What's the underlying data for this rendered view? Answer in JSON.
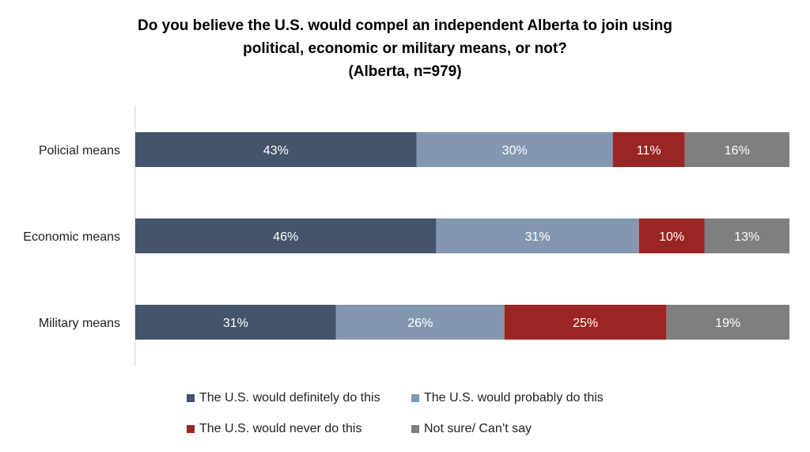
{
  "chart_data": {
    "type": "bar",
    "orientation": "horizontal",
    "stacked": true,
    "title_lines": [
      "Do you believe the U.S. would compel an independent Alberta to join using",
      "political, economic or military means, or not?",
      "(Alberta, n=979)"
    ],
    "categories": [
      "Policial means",
      "Economic means",
      "Military means"
    ],
    "series": [
      {
        "name": "The U.S. would definitely do this",
        "color": "#44546a",
        "values": [
          43,
          46,
          31
        ],
        "labels": [
          "43%",
          "46%",
          "31%"
        ]
      },
      {
        "name": "The U.S. would probably do this",
        "color": "#8497b0",
        "values": [
          30,
          31,
          26
        ],
        "labels": [
          "30%",
          "31%",
          "26%"
        ]
      },
      {
        "name": "The U.S. would never do this",
        "color": "#9b2523",
        "values": [
          11,
          10,
          25
        ],
        "labels": [
          "11%",
          "10%",
          "25%"
        ]
      },
      {
        "name": "Not sure/ Can’t say",
        "color": "#7f7f7f",
        "values": [
          16,
          13,
          19
        ],
        "labels": [
          "16%",
          "13%",
          "19%"
        ]
      }
    ],
    "xlim": [
      0,
      100
    ],
    "grid": false,
    "legend_position": "bottom"
  }
}
